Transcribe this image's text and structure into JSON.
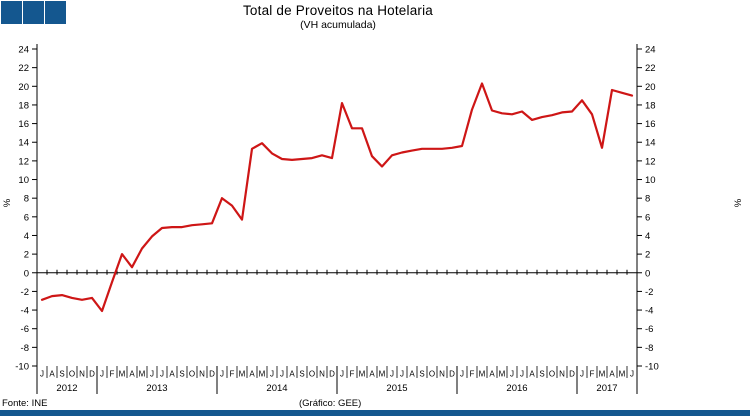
{
  "header": {
    "logo": {
      "square_count": 3,
      "color": "#14578F"
    }
  },
  "footer": {
    "source": "Fonte: INE",
    "credit": "(Gráfico: GEE)",
    "bar_color": "#14578F"
  },
  "chart_data": {
    "type": "line",
    "title": "Total de Proveitos na Hotelaria",
    "subtitle": "(VH acumulada)",
    "ylabel_left": "%",
    "ylabel_right": "%",
    "ylim": [
      -10,
      24
    ],
    "ytick_step": 2,
    "grid": false,
    "legend": "none",
    "line_color": "#CE1616",
    "axis_color": "#000000",
    "years": [
      {
        "year": "2012",
        "months": [
          "J",
          "A",
          "S",
          "O",
          "N",
          "D"
        ],
        "values": [
          -2.9,
          -2.5,
          -2.4,
          -2.7,
          -2.9,
          -2.7
        ]
      },
      {
        "year": "2013",
        "months": [
          "J",
          "F",
          "M",
          "A",
          "M",
          "J",
          "J",
          "A",
          "S",
          "O",
          "N",
          "D"
        ],
        "values": [
          -4.1,
          -1.0,
          2.0,
          0.6,
          2.6,
          3.9,
          4.8,
          4.9,
          4.9,
          5.1,
          5.2,
          5.3
        ]
      },
      {
        "year": "2014",
        "months": [
          "J",
          "F",
          "M",
          "A",
          "M",
          "J",
          "J",
          "A",
          "S",
          "O",
          "N",
          "D"
        ],
        "values": [
          8.0,
          7.2,
          5.7,
          13.3,
          13.9,
          12.8,
          12.2,
          12.1,
          12.2,
          12.3,
          12.6,
          12.3
        ]
      },
      {
        "year": "2015",
        "months": [
          "J",
          "F",
          "M",
          "A",
          "M",
          "J",
          "J",
          "A",
          "S",
          "O",
          "N",
          "D"
        ],
        "values": [
          18.2,
          15.5,
          15.5,
          12.5,
          11.4,
          12.6,
          12.9,
          13.1,
          13.3,
          13.3,
          13.3,
          13.4
        ]
      },
      {
        "year": "2016",
        "months": [
          "J",
          "F",
          "M",
          "A",
          "M",
          "J",
          "J",
          "A",
          "S",
          "O",
          "N",
          "D"
        ],
        "values": [
          13.6,
          17.5,
          20.3,
          17.4,
          17.1,
          17.0,
          17.3,
          16.4,
          16.7,
          16.9,
          17.2,
          17.3
        ]
      },
      {
        "year": "2017",
        "months": [
          "J",
          "F",
          "M",
          "A",
          "M",
          "J"
        ],
        "values": [
          18.5,
          17.0,
          13.4,
          19.6,
          19.3,
          19.0
        ]
      }
    ]
  }
}
